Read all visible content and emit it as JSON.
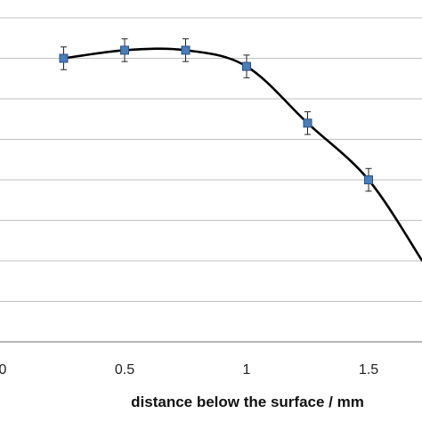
{
  "chart_data": {
    "type": "line",
    "xlabel": "distance below the surface / mm",
    "ylabel": "",
    "title": "",
    "xlim": [
      0,
      1.72
    ],
    "ylim": [
      0,
      8.4
    ],
    "x_ticks": [
      "0",
      "0.5",
      "1",
      "1.5"
    ],
    "x_tick_values": [
      0,
      0.5,
      1,
      1.5
    ],
    "y_gridlines": [
      1,
      2,
      3,
      4,
      5,
      6,
      7,
      8
    ],
    "grid": true,
    "legend": "none",
    "series": [
      {
        "x": [
          0.25,
          0.5,
          0.75,
          1.0,
          1.25,
          1.5,
          1.72
        ],
        "y": [
          7.0,
          7.2,
          7.2,
          6.8,
          5.4,
          4.0,
          2.0
        ],
        "error": [
          0.28,
          0.28,
          0.28,
          0.28,
          0.28,
          0.28,
          0
        ],
        "markers_shown": [
          true,
          true,
          true,
          true,
          true,
          true,
          false
        ],
        "color": "#000000",
        "marker_color": "#4a7ebb",
        "marker_edge": "#2a4f80"
      }
    ]
  }
}
